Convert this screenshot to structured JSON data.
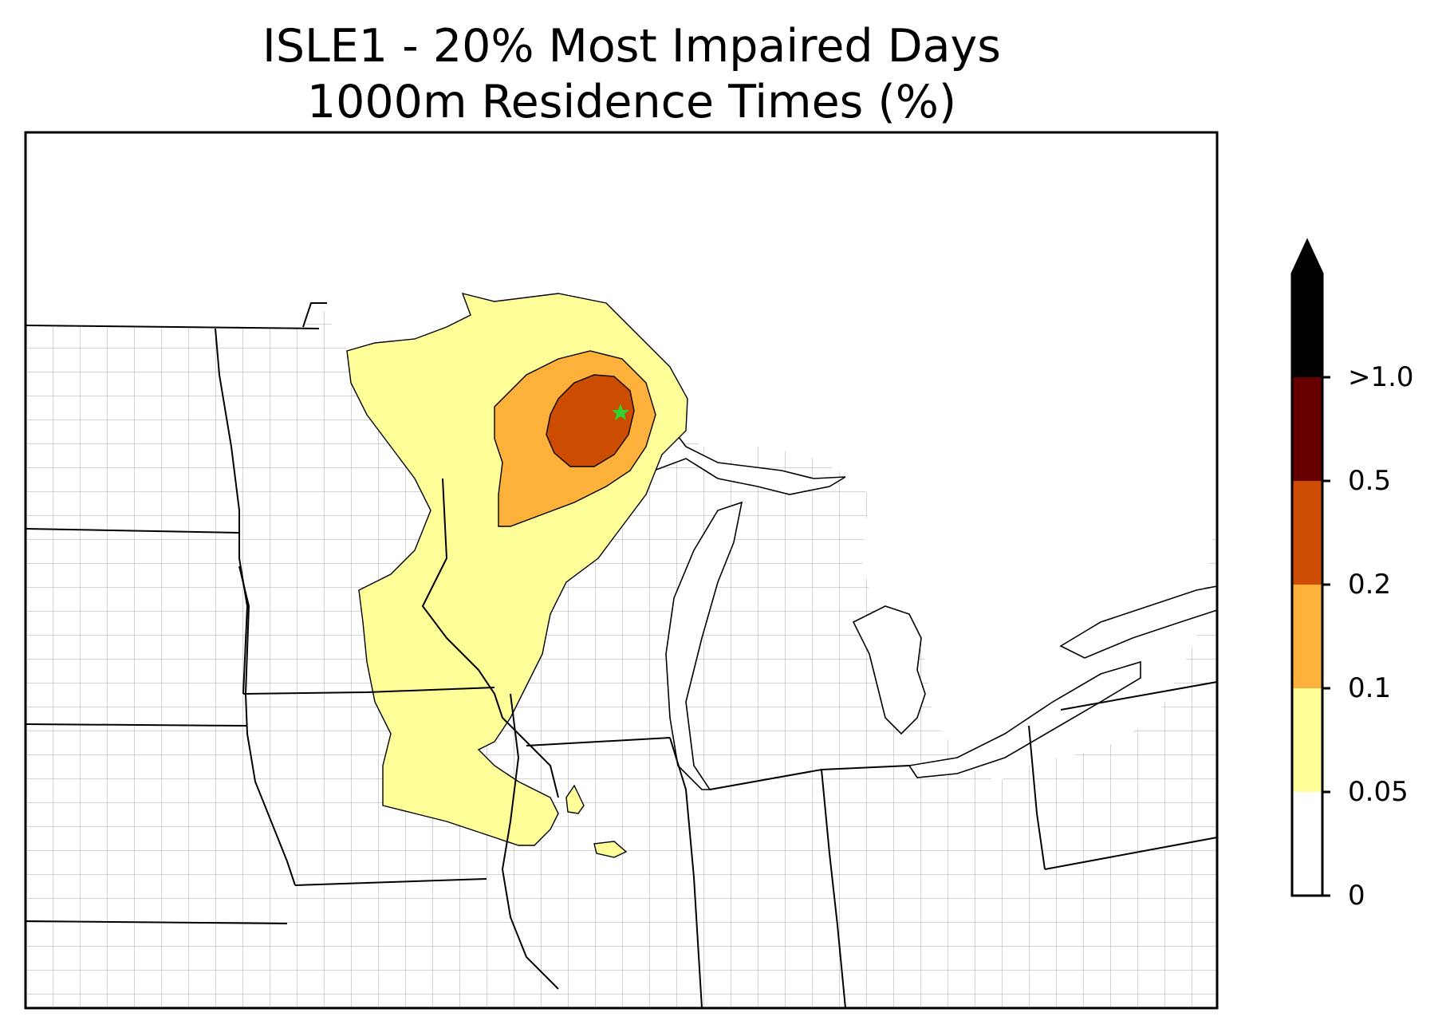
{
  "title": {
    "line1": "ISLE1 - 20% Most Impaired Days",
    "line2": "1000m Residence Times (%)"
  },
  "site_marker": {
    "name": "ISLE1",
    "symbol": "star",
    "color": "#2fd22f"
  },
  "legend": {
    "levels": [
      {
        "label": "0",
        "color": "#ffffff"
      },
      {
        "label": "0.05",
        "color": "#ffff99"
      },
      {
        "label": "0.1",
        "color": "#feb13a"
      },
      {
        "label": "0.2",
        "color": "#cc4c02"
      },
      {
        "label": "0.5",
        "color": "#660000"
      },
      {
        "label": ">1.0",
        "color": "#000000"
      }
    ],
    "extend": "max"
  },
  "colors": {
    "state_borders": "#000000",
    "county_borders": "#aaaaaa"
  }
}
